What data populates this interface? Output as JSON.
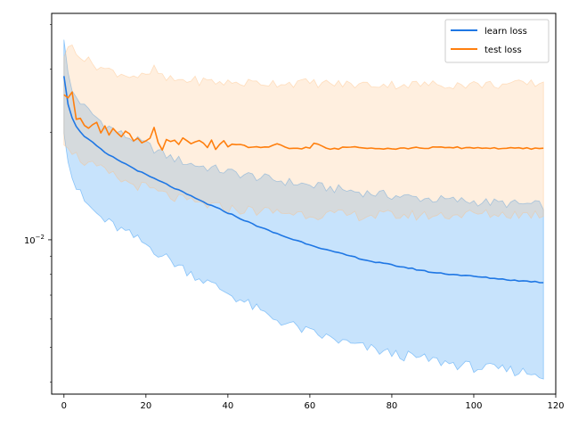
{
  "chart_data": {
    "type": "line",
    "title": "",
    "xlabel": "",
    "ylabel": "",
    "x_scale": "linear",
    "y_scale": "log",
    "xlim": [
      -3,
      120
    ],
    "ylim": [
      0.0037,
      0.043
    ],
    "x_ticks": [
      0,
      20,
      40,
      60,
      80,
      100,
      120
    ],
    "x_tick_labels": [
      "0",
      "20",
      "40",
      "60",
      "80",
      "100",
      "120"
    ],
    "y_major_ticks": [
      0.01
    ],
    "y_major_tick_labels": [
      {
        "base": "10",
        "exponent": "−2"
      }
    ],
    "y_minor_ticks": [
      0.004,
      0.005,
      0.006,
      0.007,
      0.008,
      0.009,
      0.02,
      0.03,
      0.04
    ],
    "grid": false,
    "legend_position": "top-right",
    "series": [
      {
        "name": "learn loss",
        "color": "#1f77e4",
        "band_color": "#1f8ff5",
        "x_end": 117,
        "anchors": [
          [
            0,
            0.0288
          ],
          [
            1,
            0.024
          ],
          [
            2,
            0.022
          ],
          [
            3,
            0.0207
          ],
          [
            5,
            0.0195
          ],
          [
            8,
            0.0183
          ],
          [
            10,
            0.0175
          ],
          [
            15,
            0.0163
          ],
          [
            20,
            0.0152
          ],
          [
            25,
            0.0143
          ],
          [
            30,
            0.0134
          ],
          [
            35,
            0.0126
          ],
          [
            40,
            0.0119
          ],
          [
            45,
            0.0112
          ],
          [
            50,
            0.0106
          ],
          [
            55,
            0.0101
          ],
          [
            60,
            0.0097
          ],
          [
            65,
            0.0093
          ],
          [
            70,
            0.009
          ],
          [
            75,
            0.0087
          ],
          [
            80,
            0.0085
          ],
          [
            85,
            0.0083
          ],
          [
            90,
            0.0081
          ],
          [
            95,
            0.008
          ],
          [
            100,
            0.0079
          ],
          [
            105,
            0.0078
          ],
          [
            110,
            0.0077
          ],
          [
            117,
            0.0076
          ]
        ],
        "band_upper": [
          [
            0,
            0.037
          ],
          [
            1,
            0.029
          ],
          [
            2,
            0.026
          ],
          [
            5,
            0.0235
          ],
          [
            10,
            0.021
          ],
          [
            15,
            0.0195
          ],
          [
            20,
            0.0185
          ],
          [
            25,
            0.0172
          ],
          [
            30,
            0.0164
          ],
          [
            40,
            0.0155
          ],
          [
            50,
            0.0148
          ],
          [
            60,
            0.0142
          ],
          [
            70,
            0.0137
          ],
          [
            80,
            0.0133
          ],
          [
            90,
            0.013
          ],
          [
            100,
            0.0128
          ],
          [
            110,
            0.0126
          ],
          [
            117,
            0.0125
          ]
        ],
        "band_lower": [
          [
            0,
            0.0205
          ],
          [
            1,
            0.017
          ],
          [
            2,
            0.015
          ],
          [
            3,
            0.014
          ],
          [
            5,
            0.0128
          ],
          [
            8,
            0.0118
          ],
          [
            10,
            0.0113
          ],
          [
            15,
            0.0105
          ],
          [
            20,
            0.0097
          ],
          [
            25,
            0.0089
          ],
          [
            30,
            0.0082
          ],
          [
            35,
            0.0076
          ],
          [
            40,
            0.0071
          ],
          [
            45,
            0.0066
          ],
          [
            50,
            0.0061
          ],
          [
            55,
            0.0058
          ],
          [
            60,
            0.0055
          ],
          [
            65,
            0.0053
          ],
          [
            70,
            0.0051
          ],
          [
            80,
            0.0048
          ],
          [
            90,
            0.0046
          ],
          [
            100,
            0.0044
          ],
          [
            110,
            0.0043
          ],
          [
            117,
            0.0042
          ]
        ]
      },
      {
        "name": "test loss",
        "color": "#ff7f0e",
        "band_color": "#ffbf80",
        "x_end": 117,
        "anchors": [
          [
            0,
            0.0255
          ],
          [
            1,
            0.0248
          ],
          [
            2,
            0.026
          ],
          [
            3,
            0.0218
          ],
          [
            4,
            0.022
          ],
          [
            5,
            0.021
          ],
          [
            6,
            0.0205
          ],
          [
            8,
            0.0213
          ],
          [
            9,
            0.02
          ],
          [
            10,
            0.0208
          ],
          [
            11,
            0.0197
          ],
          [
            12,
            0.0205
          ],
          [
            14,
            0.0195
          ],
          [
            15,
            0.0201
          ],
          [
            16,
            0.0198
          ],
          [
            17,
            0.0188
          ],
          [
            18,
            0.0192
          ],
          [
            19,
            0.0186
          ],
          [
            20,
            0.0188
          ],
          [
            21,
            0.0193
          ],
          [
            22,
            0.0206
          ],
          [
            23,
            0.0186
          ],
          [
            24,
            0.0178
          ],
          [
            25,
            0.019
          ],
          [
            27,
            0.0189
          ],
          [
            28,
            0.0184
          ],
          [
            29,
            0.0192
          ],
          [
            31,
            0.0186
          ],
          [
            33,
            0.019
          ],
          [
            35,
            0.0182
          ],
          [
            36,
            0.019
          ],
          [
            37,
            0.018
          ],
          [
            39,
            0.0189
          ],
          [
            40,
            0.0183
          ],
          [
            42,
            0.0185
          ],
          [
            45,
            0.0182
          ],
          [
            50,
            0.0181
          ],
          [
            52,
            0.0185
          ],
          [
            55,
            0.018
          ],
          [
            60,
            0.0181
          ],
          [
            61,
            0.0186
          ],
          [
            65,
            0.0179
          ],
          [
            70,
            0.0182
          ],
          [
            80,
            0.018
          ],
          [
            90,
            0.0181
          ],
          [
            100,
            0.0181
          ],
          [
            110,
            0.018
          ],
          [
            117,
            0.018
          ]
        ],
        "band_upper": [
          [
            0,
            0.033
          ],
          [
            2,
            0.035
          ],
          [
            5,
            0.032
          ],
          [
            10,
            0.03
          ],
          [
            15,
            0.029
          ],
          [
            20,
            0.0285
          ],
          [
            22,
            0.03
          ],
          [
            25,
            0.028
          ],
          [
            30,
            0.028
          ],
          [
            40,
            0.0275
          ],
          [
            50,
            0.0275
          ],
          [
            60,
            0.0275
          ],
          [
            70,
            0.0272
          ],
          [
            80,
            0.0272
          ],
          [
            90,
            0.0272
          ],
          [
            100,
            0.0272
          ],
          [
            110,
            0.0272
          ],
          [
            117,
            0.0275
          ]
        ],
        "band_lower": [
          [
            0,
            0.019
          ],
          [
            1,
            0.0185
          ],
          [
            2,
            0.0178
          ],
          [
            3,
            0.0172
          ],
          [
            5,
            0.0165
          ],
          [
            10,
            0.0155
          ],
          [
            15,
            0.0145
          ],
          [
            20,
            0.014
          ],
          [
            25,
            0.0133
          ],
          [
            30,
            0.0128
          ],
          [
            40,
            0.0122
          ],
          [
            50,
            0.012
          ],
          [
            60,
            0.0118
          ],
          [
            70,
            0.0117
          ],
          [
            80,
            0.0117
          ],
          [
            90,
            0.0117
          ],
          [
            100,
            0.0118
          ],
          [
            110,
            0.0118
          ],
          [
            117,
            0.0118
          ]
        ]
      }
    ]
  }
}
